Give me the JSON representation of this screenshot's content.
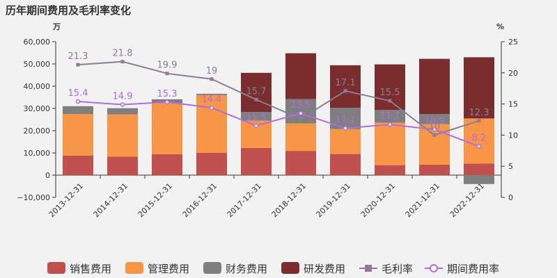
{
  "chart_data": {
    "type": "bar",
    "title": "历年期间费用及毛利率变化",
    "left_unit": "万",
    "right_unit": "%",
    "categories": [
      "2013-12-31",
      "2014-12-31",
      "2015-12-31",
      "2016-12-31",
      "2017-12-31",
      "2018-12-31",
      "2019-12-31",
      "2020-12-31",
      "2021-12-31",
      "2022-12-31"
    ],
    "left_axis": {
      "min": -10000,
      "max": 60000,
      "ticks": [
        -10000,
        0,
        10000,
        20000,
        30000,
        40000,
        50000,
        60000
      ],
      "tick_labels": [
        "−10,000",
        "0",
        "10,000",
        "20,000",
        "30,000",
        "40,000",
        "50,000",
        "60,000"
      ]
    },
    "right_axis": {
      "min": 0,
      "max": 25,
      "ticks": [
        0,
        5,
        10,
        15,
        20,
        25
      ],
      "tick_labels": [
        "0",
        "5",
        "10",
        "15",
        "20",
        "25"
      ]
    },
    "bar_series": [
      {
        "name": "销售费用",
        "color": "#c0504d",
        "values": [
          8800,
          8300,
          9400,
          10000,
          12200,
          10900,
          9500,
          4500,
          4700,
          5200
        ]
      },
      {
        "name": "管理费用",
        "color": "#f79646",
        "values": [
          18700,
          19000,
          23100,
          26000,
          12300,
          12400,
          11200,
          19100,
          18200,
          20300
        ]
      },
      {
        "name": "财务费用",
        "color": "#7f7f7f",
        "values": [
          3500,
          2800,
          1600,
          600,
          3900,
          10900,
          9600,
          5700,
          4600,
          -4000
        ]
      },
      {
        "name": "研发费用",
        "color": "#7b2c2c",
        "values": [
          0,
          0,
          0,
          0,
          17600,
          20600,
          19100,
          20500,
          24800,
          27500
        ]
      }
    ],
    "line_series": [
      {
        "name": "毛利率",
        "color": "#8c7c94",
        "marker": "square",
        "values": [
          21.3,
          21.8,
          19.9,
          19,
          15.7,
          12.6,
          17.1,
          15.5,
          10,
          12.3
        ],
        "labels": [
          "21.3",
          "21.8",
          "19.9",
          "19",
          "15.7",
          "",
          "17.1",
          "15.5",
          "10",
          "12.3"
        ]
      },
      {
        "name": "期间费用率",
        "color": "#b36cde",
        "marker": "circle",
        "values": [
          15.4,
          14.9,
          15.3,
          14.4,
          11.5,
          13.5,
          11.1,
          11.7,
          10.9,
          8.2
        ],
        "labels": [
          "15.4",
          "14.9",
          "15.3",
          "14.4",
          "11.5",
          "13.5",
          "11.1",
          "11.7",
          "10.9",
          "8.2"
        ]
      }
    ],
    "legend_position": "bottom",
    "grid": false
  }
}
